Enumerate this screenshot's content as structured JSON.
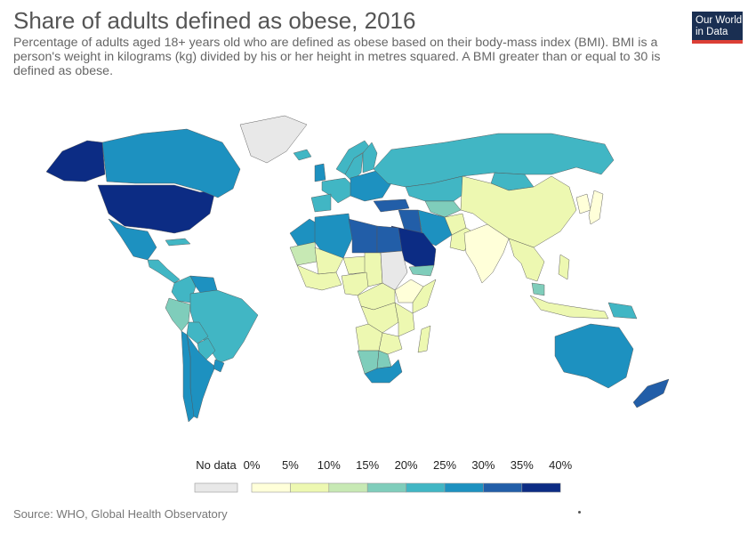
{
  "header": {
    "title": "Share of adults defined as obese, 2016",
    "subtitle": "Percentage of adults aged 18+ years old who are defined as obese based on their body-mass index (BMI). BMI is a person's weight in kilograms (kg) divided by his or her height in metres squared. A BMI greater than or equal to 30 is defined as obese."
  },
  "logo": {
    "line1": "Our World",
    "line2": "in Data",
    "bg_color": "#1a2f52",
    "accent_color": "#dc3f36"
  },
  "legend": {
    "no_data_label": "No data",
    "no_data_color": "#e8e8e8",
    "ticks": [
      "0%",
      "5%",
      "10%",
      "15%",
      "20%",
      "25%",
      "30%",
      "35%",
      "40%"
    ],
    "colors": [
      "#ffffd9",
      "#edf8b1",
      "#c7e9b4",
      "#7fcdbb",
      "#41b6c4",
      "#1d91c0",
      "#225ea8",
      "#0c2c84"
    ]
  },
  "source": "Source: WHO, Global Health Observatory",
  "map": {
    "type": "choropleth",
    "year": 2016,
    "regions": [
      {
        "name": "United States",
        "value": 36.2
      },
      {
        "name": "Canada",
        "value": 29.4
      },
      {
        "name": "Alaska",
        "value": 36.2
      },
      {
        "name": "Greenland",
        "value": null
      },
      {
        "name": "Mexico",
        "value": 28.9
      },
      {
        "name": "Central America",
        "value": 22.0
      },
      {
        "name": "Cuba",
        "value": 24.6
      },
      {
        "name": "Colombia",
        "value": 22.3
      },
      {
        "name": "Venezuela",
        "value": 25.6
      },
      {
        "name": "Peru",
        "value": 19.7
      },
      {
        "name": "Brazil",
        "value": 22.1
      },
      {
        "name": "Bolivia",
        "value": 20.2
      },
      {
        "name": "Paraguay",
        "value": 20.3
      },
      {
        "name": "Argentina",
        "value": 28.3
      },
      {
        "name": "Chile",
        "value": 28.0
      },
      {
        "name": "Uruguay",
        "value": 27.9
      },
      {
        "name": "Iceland",
        "value": 21.9
      },
      {
        "name": "Norway",
        "value": 23.1
      },
      {
        "name": "Sweden",
        "value": 20.6
      },
      {
        "name": "Finland",
        "value": 22.2
      },
      {
        "name": "United Kingdom",
        "value": 27.8
      },
      {
        "name": "Western Europe",
        "value": 22.5
      },
      {
        "name": "Spain",
        "value": 23.8
      },
      {
        "name": "Eastern Europe",
        "value": 26.8
      },
      {
        "name": "Turkey",
        "value": 32.1
      },
      {
        "name": "Russia",
        "value": 23.1
      },
      {
        "name": "Kazakhstan",
        "value": 21.0
      },
      {
        "name": "Central Asia",
        "value": 16.0
      },
      {
        "name": "Mongolia",
        "value": 20.6
      },
      {
        "name": "China",
        "value": 6.2
      },
      {
        "name": "Korea",
        "value": 4.7
      },
      {
        "name": "Japan",
        "value": 4.3
      },
      {
        "name": "Iran",
        "value": 25.8
      },
      {
        "name": "Iraq",
        "value": 30.4
      },
      {
        "name": "Saudi Arabia",
        "value": 35.4
      },
      {
        "name": "Yemen",
        "value": 17.1
      },
      {
        "name": "Afghanistan",
        "value": 5.5
      },
      {
        "name": "Pakistan",
        "value": 8.6
      },
      {
        "name": "India",
        "value": 3.9
      },
      {
        "name": "Southeast Asia",
        "value": 6.0
      },
      {
        "name": "Malaysia",
        "value": 15.6
      },
      {
        "name": "Indonesia",
        "value": 6.9
      },
      {
        "name": "Papua New Guinea",
        "value": 21.3
      },
      {
        "name": "Philippines",
        "value": 6.4
      },
      {
        "name": "Australia",
        "value": 29.0
      },
      {
        "name": "New Zealand",
        "value": 30.8
      },
      {
        "name": "Morocco",
        "value": 26.1
      },
      {
        "name": "Algeria",
        "value": 27.4
      },
      {
        "name": "Libya",
        "value": 32.5
      },
      {
        "name": "Egypt",
        "value": 32.0
      },
      {
        "name": "Mauritania",
        "value": 12.7
      },
      {
        "name": "Mali",
        "value": 8.6
      },
      {
        "name": "Niger",
        "value": 5.5
      },
      {
        "name": "Chad",
        "value": 6.1
      },
      {
        "name": "Sudan",
        "value": null
      },
      {
        "name": "Ethiopia",
        "value": 4.5
      },
      {
        "name": "Somalia",
        "value": 8.3
      },
      {
        "name": "Nigeria",
        "value": 8.9
      },
      {
        "name": "West Africa",
        "value": 9.0
      },
      {
        "name": "Central Africa",
        "value": 8.0
      },
      {
        "name": "DR Congo",
        "value": 6.7
      },
      {
        "name": "East Africa",
        "value": 7.1
      },
      {
        "name": "Angola",
        "value": 8.2
      },
      {
        "name": "Zambia",
        "value": 8.1
      },
      {
        "name": "Namibia",
        "value": 17.2
      },
      {
        "name": "Botswana",
        "value": 18.9
      },
      {
        "name": "South Africa",
        "value": 28.3
      },
      {
        "name": "Madagascar",
        "value": 5.3
      }
    ]
  }
}
